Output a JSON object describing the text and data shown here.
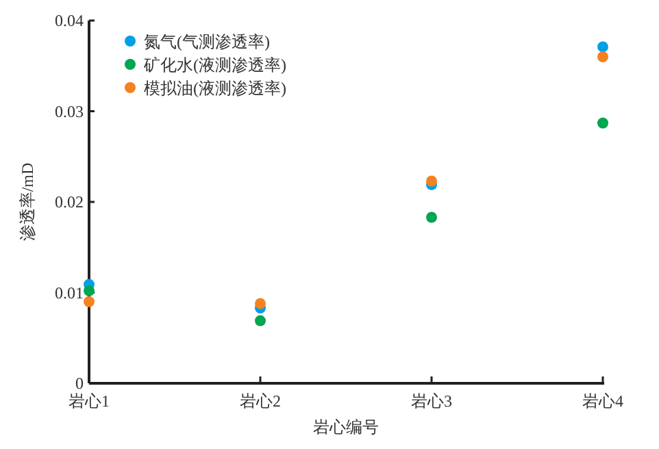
{
  "chart_data": {
    "type": "scatter",
    "xlabel": "岩心编号",
    "ylabel": "渗透率/mD",
    "categories": [
      "岩心1",
      "岩心2",
      "岩心3",
      "岩心4"
    ],
    "series": [
      {
        "name": "氮气(气测渗透率)",
        "color": "#00a0e9",
        "values": [
          0.0109,
          0.0083,
          0.0219,
          0.0371
        ]
      },
      {
        "name": "矿化水(液测渗透率)",
        "color": "#00a651",
        "values": [
          0.0102,
          0.0069,
          0.0183,
          0.0287
        ]
      },
      {
        "name": "模拟油(液测渗透率)",
        "color": "#f58220",
        "values": [
          0.009,
          0.0088,
          0.0223,
          0.036
        ]
      }
    ],
    "ylim": [
      0,
      0.04
    ],
    "yticks": [
      0,
      0.01,
      0.02,
      0.03,
      0.04
    ],
    "grid": false,
    "legend": "top left",
    "marker": "circle"
  }
}
